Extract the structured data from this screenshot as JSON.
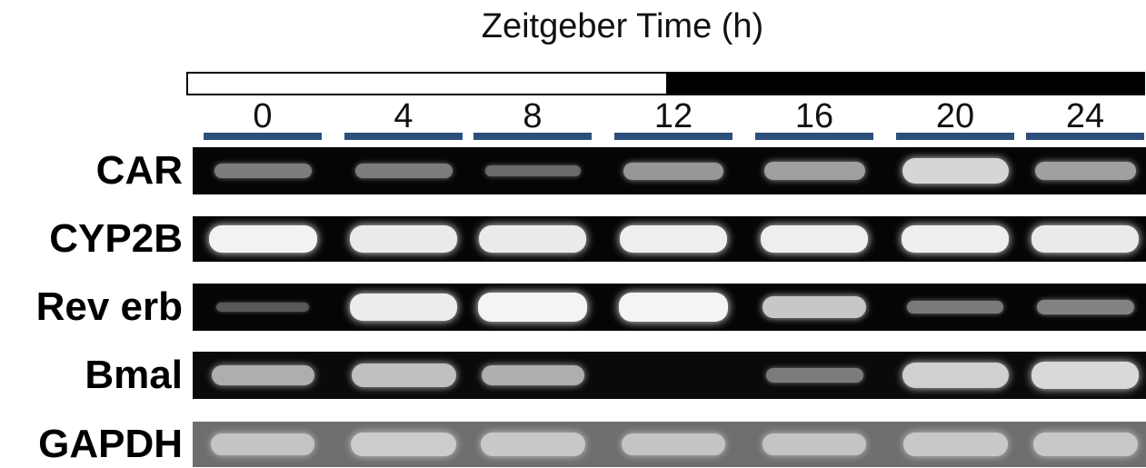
{
  "figure": {
    "title": "Zeitgeber Time (h)",
    "light_dark": {
      "light_label": "",
      "dark_label": ""
    },
    "timepoints": [
      "0",
      "4",
      "8",
      "12",
      "16",
      "20",
      "24"
    ],
    "rows": [
      {
        "label": "CAR",
        "gel_color": "#050505",
        "band_color": "#e6e6e6",
        "intensities": [
          0.35,
          0.35,
          0.25,
          0.5,
          0.55,
          0.85,
          0.55
        ]
      },
      {
        "label": "CYP2B",
        "gel_color": "#050505",
        "band_color": "#f2f2f2",
        "intensities": [
          0.95,
          0.9,
          0.9,
          0.92,
          0.92,
          0.92,
          0.9
        ]
      },
      {
        "label": "Rev erb",
        "gel_color": "#050505",
        "band_color": "#f4f4f4",
        "intensities": [
          0.12,
          0.9,
          1.0,
          1.0,
          0.7,
          0.3,
          0.35
        ]
      },
      {
        "label": "Bmal",
        "gel_color": "#0a0a0a",
        "band_color": "#e0e0e0",
        "intensities": [
          0.65,
          0.75,
          0.65,
          0.0,
          0.35,
          0.85,
          0.9
        ]
      },
      {
        "label": "GAPDH",
        "gel_color": "#6e6e6e",
        "band_color": "#d8d8d8",
        "intensities": [
          0.7,
          0.8,
          0.75,
          0.7,
          0.7,
          0.75,
          0.75
        ]
      }
    ]
  }
}
